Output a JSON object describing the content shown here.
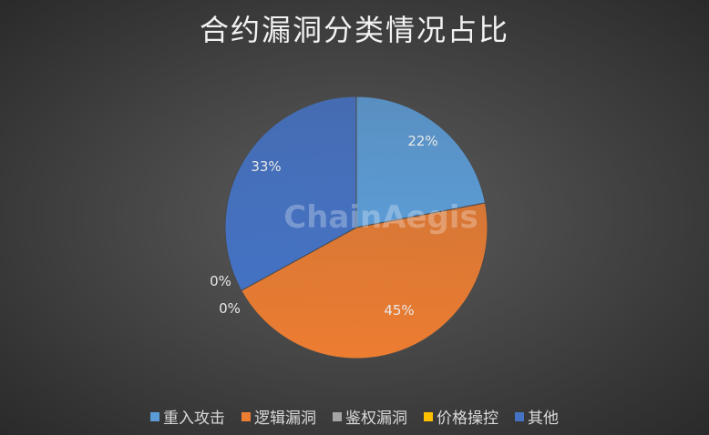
{
  "chart_data": {
    "type": "pie",
    "title": "合约漏洞分类情况占比",
    "categories": [
      "重入攻击",
      "逻辑漏洞",
      "鉴权漏洞",
      "价格操控",
      "其他"
    ],
    "values": [
      22,
      45,
      0,
      0,
      33
    ],
    "labels": [
      "22%",
      "45%",
      "0%",
      "0%",
      "33%"
    ],
    "colors": [
      "#5b9bd5",
      "#ed7d31",
      "#a5a5a5",
      "#ffc000",
      "#4472c4"
    ],
    "start_angle": "12 o'clock",
    "direction": "clockwise",
    "legend_position": "bottom"
  },
  "watermark": "ChainAegis"
}
